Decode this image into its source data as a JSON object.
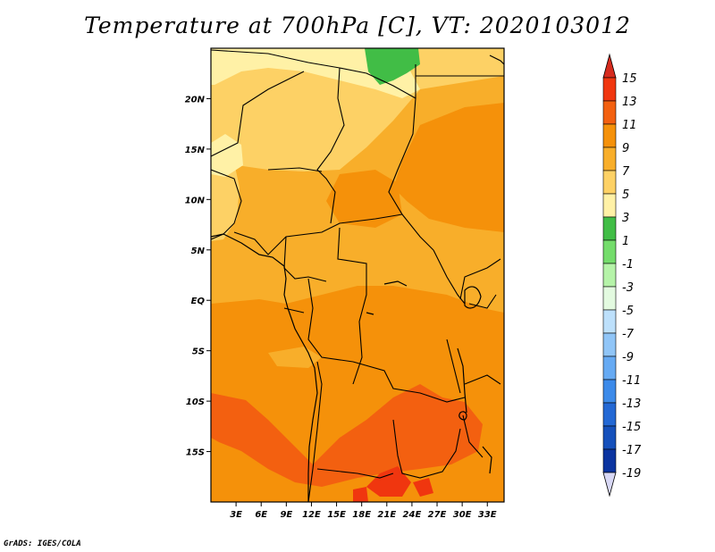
{
  "title": "Temperature at 700hPa [C], VT: 2020103012",
  "credit": "GrADS: IGES/COLA",
  "map": {
    "lon_ticks": [
      "3E",
      "6E",
      "9E",
      "12E",
      "15E",
      "18E",
      "21E",
      "24E",
      "27E",
      "30E",
      "33E"
    ],
    "lat_ticks": [
      "20N",
      "15N",
      "10N",
      "5N",
      "EQ",
      "5S",
      "10S",
      "15S"
    ],
    "lon_range": [
      0,
      35
    ],
    "lat_range": [
      -20,
      25
    ]
  },
  "colorbar": {
    "levels": [
      "15",
      "13",
      "11",
      "9",
      "7",
      "5",
      "3",
      "1",
      "-1",
      "-3",
      "-5",
      "-7",
      "-9",
      "-11",
      "-13",
      "-15",
      "-17",
      "-19"
    ],
    "colors": {
      "max_arrow": "#d62b1e",
      "bands": [
        "#f0360f",
        "#f36010",
        "#f5910a",
        "#f8ae2a",
        "#fdd165",
        "#fff1a6",
        "#41bd46",
        "#74dc6b",
        "#b5f3a8",
        "#e3fae0",
        "#bde0fb",
        "#90c5f7",
        "#66aaf3",
        "#3c8ae9",
        "#2368d4",
        "#1550bb",
        "#0b34a0"
      ],
      "min_arrow": "#d8d8f5"
    }
  },
  "field_colors": {
    "t3": "#41bd46",
    "t5": "#fff1a6",
    "t7": "#fdd165",
    "t9": "#f8ae2a",
    "t11": "#f5910a",
    "t13": "#f36010",
    "t15": "#f0360f"
  }
}
